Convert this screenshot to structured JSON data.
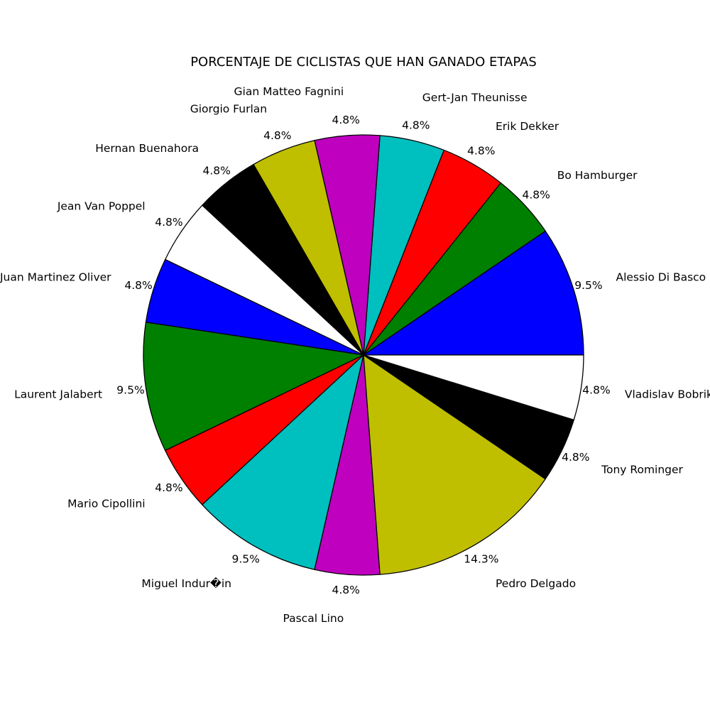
{
  "chart_data": {
    "type": "pie",
    "title": "PORCENTAJE DE CICLISTAS QUE HAN GANADO ETAPAS",
    "start_angle_deg": 0,
    "direction": "counterclockwise",
    "slices": [
      {
        "label": "Alessio Di Basco",
        "pct_label": "9.5%",
        "value": 2,
        "color": "#0000ff"
      },
      {
        "label": "Bo Hamburger",
        "pct_label": "4.8%",
        "value": 1,
        "color": "#008000"
      },
      {
        "label": "Erik Dekker",
        "pct_label": "4.8%",
        "value": 1,
        "color": "#ff0000"
      },
      {
        "label": "Gert-Jan Theunisse",
        "pct_label": "4.8%",
        "value": 1,
        "color": "#00bfbf"
      },
      {
        "label": "Gian Matteo Fagnini",
        "pct_label": "4.8%",
        "value": 1,
        "color": "#bf00bf"
      },
      {
        "label": "Giorgio Furlan",
        "pct_label": "4.8%",
        "value": 1,
        "color": "#bfbf00"
      },
      {
        "label": "Hernan Buenahora",
        "pct_label": "4.8%",
        "value": 1,
        "color": "#000000"
      },
      {
        "label": "Jean Van Poppel",
        "pct_label": "4.8%",
        "value": 1,
        "color": "#ffffff"
      },
      {
        "label": "Juan Martinez Oliver",
        "pct_label": "4.8%",
        "value": 1,
        "color": "#0000ff"
      },
      {
        "label": "Laurent Jalabert",
        "pct_label": "9.5%",
        "value": 2,
        "color": "#008000"
      },
      {
        "label": "Mario Cipollini",
        "pct_label": "4.8%",
        "value": 1,
        "color": "#ff0000"
      },
      {
        "label": "Miguel Indur�in",
        "pct_label": "9.5%",
        "value": 2,
        "color": "#00bfbf"
      },
      {
        "label": "Pascal Lino",
        "pct_label": "4.8%",
        "value": 1,
        "color": "#bf00bf"
      },
      {
        "label": "Pedro Delgado",
        "pct_label": "14.3%",
        "value": 3,
        "color": "#bfbf00"
      },
      {
        "label": "Tony Rominger",
        "pct_label": "4.8%",
        "value": 1,
        "color": "#000000"
      },
      {
        "label": "Vladislav Bobrik",
        "pct_label": "4.8%",
        "value": 1,
        "color": "#ffffff"
      }
    ]
  }
}
